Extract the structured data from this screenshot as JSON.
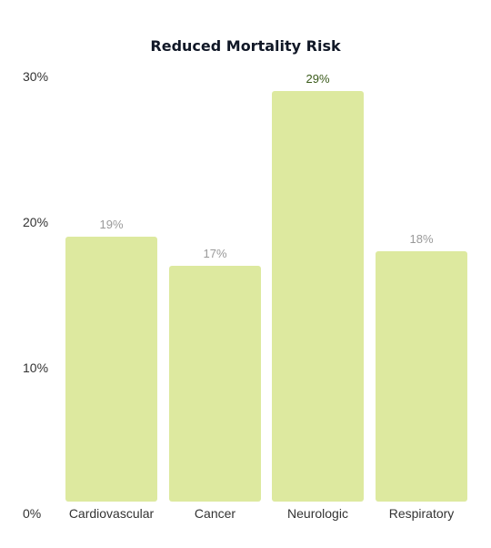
{
  "chart_data": {
    "type": "bar",
    "title": "Reduced Mortality Risk",
    "xlabel": "",
    "ylabel": "",
    "categories": [
      "Cardiovascular",
      "Cancer",
      "Neurologic",
      "Respiratory"
    ],
    "values": [
      19,
      17,
      29,
      18
    ],
    "value_labels": [
      "19%",
      "17%",
      "29%",
      "18%"
    ],
    "highlighted_index": 2,
    "ylim": [
      0,
      30
    ],
    "yticks": [
      0,
      10,
      20,
      30
    ],
    "ytick_labels": [
      "0%",
      "10%",
      "20%",
      "30%"
    ],
    "grid": false,
    "legend": "none",
    "colors": {
      "bar": "#dde99f",
      "highlight_label": "#3a5a1a",
      "label": "#999999"
    }
  }
}
